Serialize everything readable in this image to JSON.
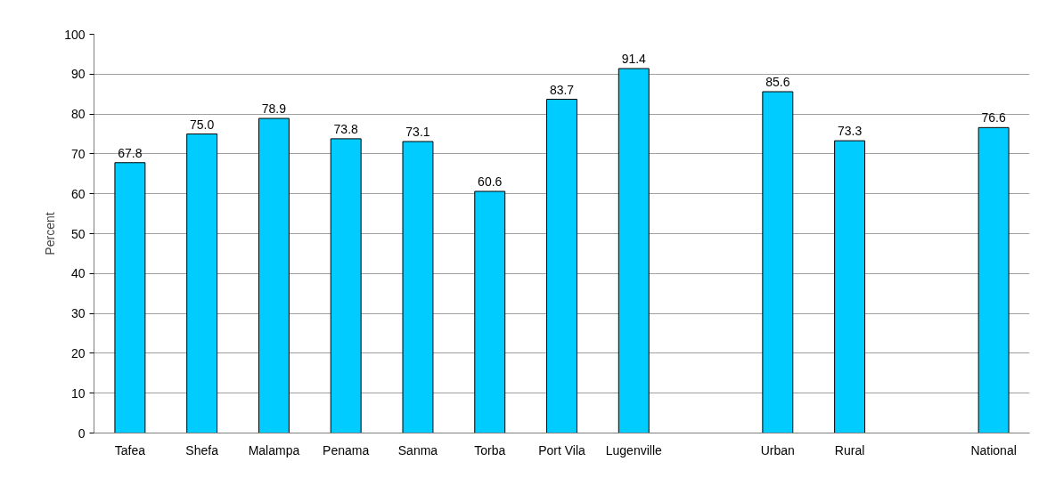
{
  "chart_data": {
    "type": "bar",
    "ylabel": "Percent",
    "categories": [
      "Tafea",
      "Shefa",
      "Malampa",
      "Penama",
      "Sanma",
      "Torba",
      "Port Vila",
      "Lugenville",
      null,
      "Urban",
      "Rural",
      null,
      "National"
    ],
    "values": [
      67.8,
      75.0,
      78.9,
      73.8,
      73.1,
      60.6,
      83.7,
      91.4,
      null,
      85.6,
      73.3,
      null,
      76.6
    ],
    "value_labels": [
      "67.8",
      "75.0",
      "78.9",
      "73.8",
      "73.1",
      "60.6",
      "83.7",
      "91.4",
      null,
      "85.6",
      "73.3",
      null,
      "76.6"
    ],
    "color": "#00ccff",
    "ylim": [
      0,
      100
    ],
    "yticks": [
      0,
      10,
      20,
      30,
      40,
      50,
      60,
      70,
      80,
      90,
      100
    ],
    "grid": "y"
  }
}
